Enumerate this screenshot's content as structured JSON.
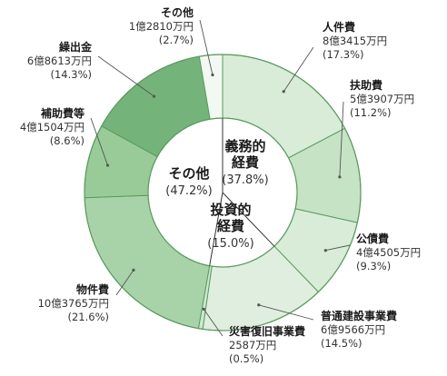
{
  "chart_data": {
    "type": "pie",
    "style": "donut",
    "unit": "万円",
    "slices": [
      {
        "name": "人件費",
        "amount": "8億3415万円",
        "pct_label": "(17.3%)",
        "value": 17.3,
        "group": "義務的経費",
        "color": "#d8ecd8"
      },
      {
        "name": "扶助費",
        "amount": "5億3907万円",
        "pct_label": "(11.2%)",
        "value": 11.2,
        "group": "義務的経費",
        "color": "#c6e3c6"
      },
      {
        "name": "公債費",
        "amount": "4億4505万円",
        "pct_label": "(9.3%)",
        "value": 9.3,
        "group": "義務的経費",
        "color": "#d8ecd8"
      },
      {
        "name": "普通建設事業費",
        "amount": "6億9566万円",
        "pct_label": "(14.5%)",
        "value": 14.5,
        "group": "投資的経費",
        "color": "#dfeedf"
      },
      {
        "name": "災害復旧事業費",
        "amount": "2587万円",
        "pct_label": "(0.5%)",
        "value": 0.5,
        "group": "投資的経費",
        "color": "#cfe7cf"
      },
      {
        "name": "物件費",
        "amount": "10億3765万円",
        "pct_label": "(21.6%)",
        "value": 21.6,
        "group": "その他",
        "color": "#a8d3a8"
      },
      {
        "name": "補助費等",
        "amount": "4億1504万円",
        "pct_label": "(8.6%)",
        "value": 8.6,
        "group": "その他",
        "color": "#98cb98"
      },
      {
        "name": "繰出金",
        "amount": "6億8613万円",
        "pct_label": "(14.3%)",
        "value": 14.3,
        "group": "その他",
        "color": "#74b47a"
      },
      {
        "name": "その他",
        "amount": "1億2810万円",
        "pct_label": "(2.7%)",
        "value": 2.7,
        "group": "その他",
        "color": "#f2f8f2"
      }
    ],
    "groups": [
      {
        "name_lines": [
          "義務的",
          "経費"
        ],
        "pct_label": "(37.8%)",
        "value": 37.8
      },
      {
        "name_lines": [
          "投資的",
          "経費"
        ],
        "pct_label": "(15.0%)",
        "value": 15.0
      },
      {
        "name_lines": [
          "その他"
        ],
        "pct_label": "(47.2%)",
        "value": 47.2
      }
    ]
  }
}
